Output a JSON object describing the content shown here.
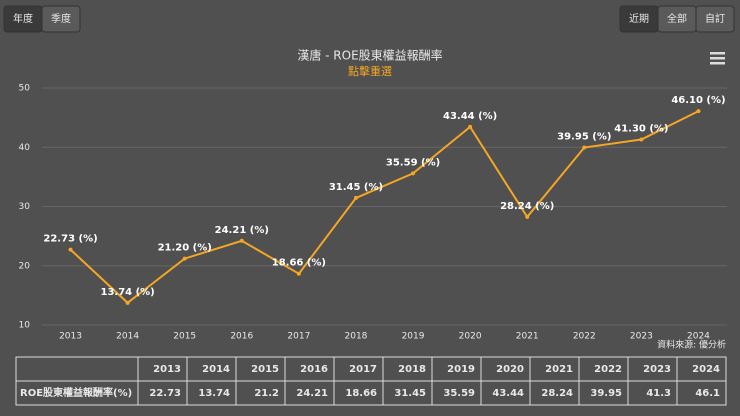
{
  "tabs": {
    "left": [
      "年度",
      "季度"
    ],
    "right": [
      "近期",
      "全部",
      "自訂"
    ]
  },
  "chart_data": {
    "type": "line",
    "title": "漢唐 - ROE股東權益報酬率",
    "subtitle": "點擊重選",
    "categories": [
      "2013",
      "2014",
      "2015",
      "2016",
      "2017",
      "2018",
      "2019",
      "2020",
      "2021",
      "2022",
      "2023",
      "2024"
    ],
    "values": [
      22.73,
      13.74,
      21.2,
      24.21,
      18.66,
      31.45,
      35.59,
      43.44,
      28.24,
      39.95,
      41.3,
      46.1
    ],
    "value_labels": [
      "22.73 (%)",
      "13.74 (%)",
      "21.20 (%)",
      "24.21 (%)",
      "18.66 (%)",
      "31.45 (%)",
      "35.59 (%)",
      "43.44 (%)",
      "28.24 (%)",
      "39.95 (%)",
      "41.30 (%)",
      "46.10 (%)"
    ],
    "color": "#f5a623",
    "ylim": [
      10,
      50
    ],
    "yticks": [
      10,
      20,
      30,
      40,
      50
    ],
    "grid": true,
    "source": "資料來源: 優分析"
  },
  "table": {
    "columns": [
      "2013",
      "2014",
      "2015",
      "2016",
      "2017",
      "2018",
      "2019",
      "2020",
      "2021",
      "2022",
      "2023",
      "2024"
    ],
    "row_label": "ROE股東權益報酬率(%)",
    "row": [
      22.73,
      13.74,
      21.2,
      24.21,
      18.66,
      31.45,
      35.59,
      43.44,
      28.24,
      39.95,
      41.3,
      46.1
    ]
  }
}
